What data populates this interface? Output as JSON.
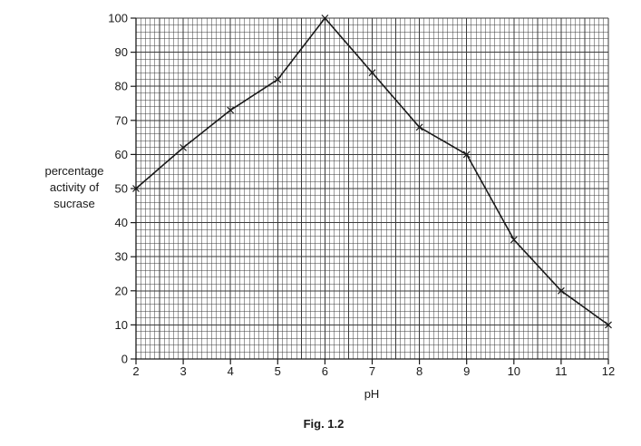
{
  "chart_data": {
    "type": "line",
    "title": "",
    "caption": "Fig. 1.2",
    "xlabel": "pH",
    "ylabel_lines": [
      "percentage",
      "activity of",
      "sucrase"
    ],
    "xlim": [
      2,
      12
    ],
    "ylim": [
      0,
      100
    ],
    "x_ticks": [
      2,
      3,
      4,
      5,
      6,
      7,
      8,
      9,
      10,
      11,
      12
    ],
    "y_ticks": [
      0,
      10,
      20,
      30,
      40,
      50,
      60,
      70,
      80,
      90,
      100
    ],
    "grid": true,
    "marker": "x",
    "colors": {
      "line": "#1a1a1a",
      "grid": "#3a3a3a"
    },
    "series": [
      {
        "x": [
          2,
          3,
          4,
          5,
          6,
          7,
          8,
          9,
          10,
          11,
          12
        ],
        "y": [
          50,
          62,
          73,
          82,
          100,
          84,
          68,
          60,
          35,
          20,
          10
        ]
      }
    ]
  }
}
